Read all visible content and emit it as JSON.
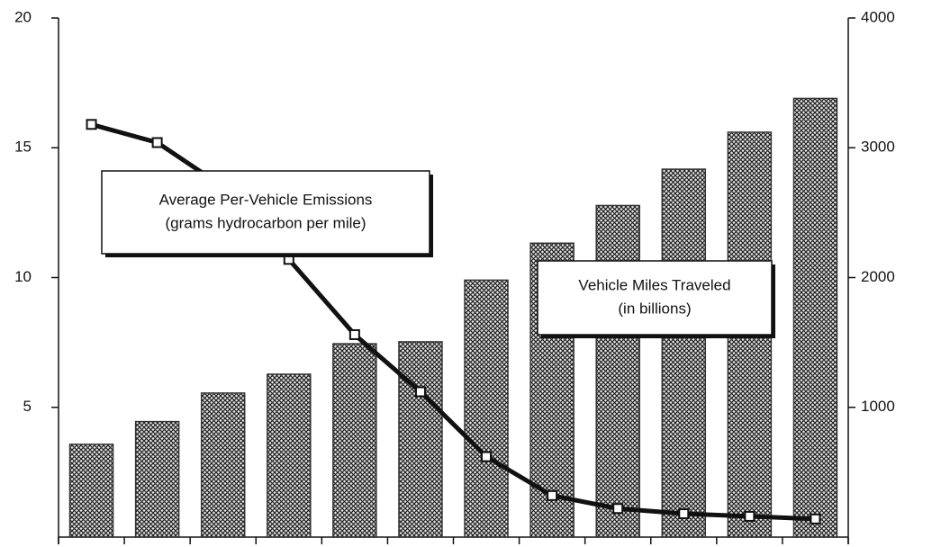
{
  "chart_data": {
    "type": "bar",
    "categories": [
      null,
      null,
      null,
      null,
      null,
      null,
      null,
      null,
      null,
      null,
      null,
      null
    ],
    "series": [
      {
        "name": "Vehicle Miles Traveled (in billions)",
        "type": "bar",
        "axis": "y2",
        "color": "#333333",
        "values": [
          715,
          890,
          1110,
          1255,
          1490,
          1505,
          1980,
          2265,
          2555,
          2835,
          3120,
          3380
        ]
      },
      {
        "name": "Average Per-Vehicle Emissions (grams hydrocarbon per mile)",
        "type": "line",
        "color": "#111111",
        "values": [
          15.9,
          15.2,
          13.5,
          10.7,
          7.8,
          5.6,
          3.1,
          1.6,
          1.1,
          0.9,
          0.8,
          0.7
        ]
      }
    ],
    "annotations": [
      {
        "lines": [
          "Average Per-Vehicle Emissions",
          "(grams hydrocarbon  per mile)"
        ]
      },
      {
        "lines": [
          "Vehicle Miles Traveled",
          "(in billions)"
        ]
      }
    ],
    "ylim": [
      0,
      20
    ],
    "yticks": [
      5,
      10,
      15,
      20
    ],
    "y2lim": [
      0,
      4000
    ],
    "y2ticks": [
      1000,
      2000,
      3000,
      4000
    ]
  }
}
